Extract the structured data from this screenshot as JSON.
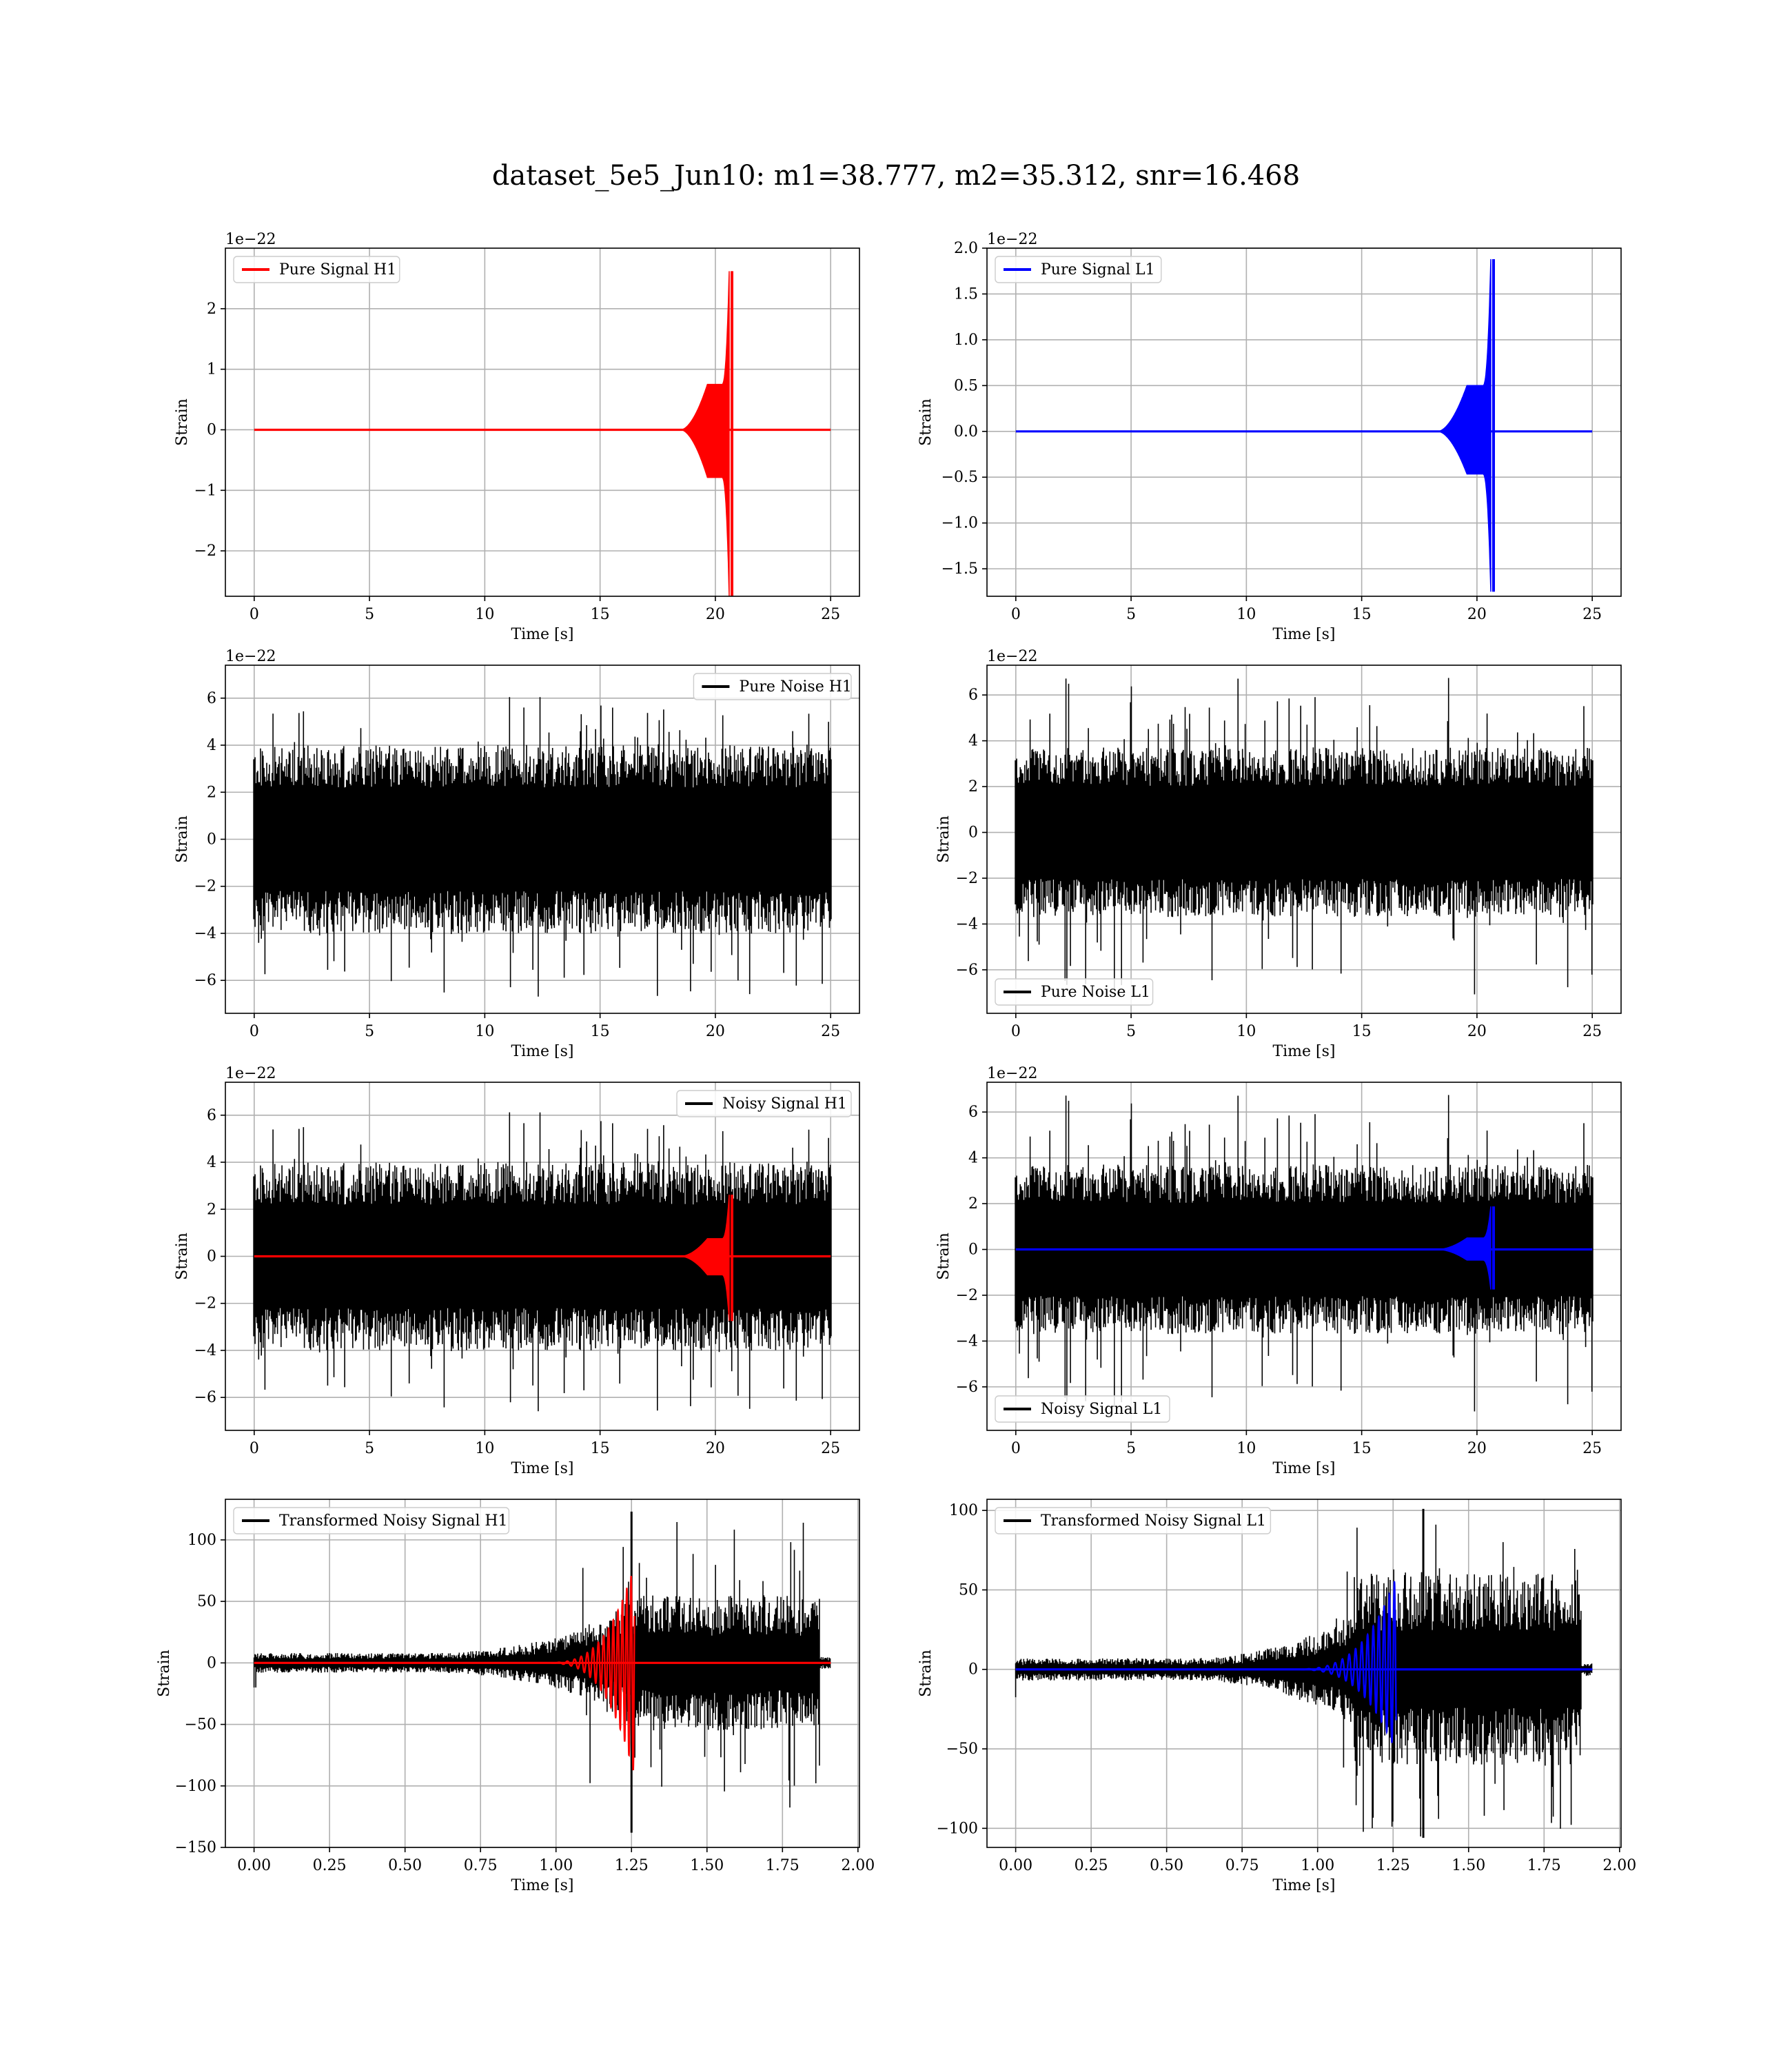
{
  "figure": {
    "title": "dataset_5e5_Jun10: m1=38.777, m2=35.312, snr=16.468"
  },
  "chart_data": [
    {
      "type": "line",
      "legend": "Pure Signal H1",
      "legend_loc": "upper left",
      "xlabel": "Time [s]",
      "ylabel": "Strain",
      "offset_text": "1e−22",
      "xlim": [
        -1.25,
        26.25
      ],
      "ylim": [
        -2.75,
        3.0
      ],
      "xticks": [
        0,
        5,
        10,
        15,
        20,
        25
      ],
      "xtick_labels": [
        "0",
        "5",
        "10",
        "15",
        "20",
        "25"
      ],
      "yticks": [
        -2,
        -1,
        0,
        1,
        2
      ],
      "ytick_labels": [
        "−2",
        "−1",
        "0",
        "1",
        "2"
      ],
      "grid": true,
      "series": [
        {
          "kind": "chirp",
          "color": "#ff0000",
          "x_start": 0,
          "x_end": 25,
          "start": 18.5,
          "peak_x": 20.6,
          "end": 20.7,
          "shoulder": 0.75,
          "amp_pos": 2.62,
          "amp_neg": 2.75,
          "ring_x": 20.72
        }
      ]
    },
    {
      "type": "line",
      "legend": "Pure Signal L1",
      "legend_loc": "upper left",
      "xlabel": "Time [s]",
      "ylabel": "Strain",
      "offset_text": "1e−22",
      "xlim": [
        -1.25,
        26.25
      ],
      "ylim": [
        -1.8,
        2.0
      ],
      "xticks": [
        0,
        5,
        10,
        15,
        20,
        25
      ],
      "xtick_labels": [
        "0",
        "5",
        "10",
        "15",
        "20",
        "25"
      ],
      "yticks": [
        -1.5,
        -1.0,
        -0.5,
        0.0,
        0.5,
        1.0,
        1.5,
        2.0
      ],
      "ytick_labels": [
        "−1.5",
        "−1.0",
        "−0.5",
        "0.0",
        "0.5",
        "1.0",
        "1.5",
        "2.0"
      ],
      "grid": true,
      "series": [
        {
          "kind": "chirp",
          "color": "#0000ff",
          "x_start": 0,
          "x_end": 25,
          "start": 18.3,
          "peak_x": 20.6,
          "end": 20.7,
          "shoulder": 0.5,
          "amp_pos": 1.88,
          "amp_neg": 1.75,
          "ring_x": 20.72
        }
      ]
    },
    {
      "type": "line",
      "legend": "Pure Noise H1",
      "legend_loc": "upper right",
      "xlabel": "Time [s]",
      "ylabel": "Strain",
      "offset_text": "1e−22",
      "xlim": [
        -1.25,
        26.25
      ],
      "ylim": [
        -7.4,
        7.4
      ],
      "xticks": [
        0,
        5,
        10,
        15,
        20,
        25
      ],
      "xtick_labels": [
        "0",
        "5",
        "10",
        "15",
        "20",
        "25"
      ],
      "yticks": [
        -6,
        -4,
        -2,
        0,
        2,
        4,
        6
      ],
      "ytick_labels": [
        "−6",
        "−4",
        "−2",
        "0",
        "2",
        "4",
        "6"
      ],
      "grid": true,
      "series": [
        {
          "kind": "noise",
          "color": "#000000",
          "x_start": 0,
          "x_end": 25,
          "core": 4.0,
          "max": 6.7,
          "min": -6.7,
          "seed": 11
        }
      ]
    },
    {
      "type": "line",
      "legend": "Pure Noise L1",
      "legend_loc": "lower left",
      "xlabel": "Time [s]",
      "ylabel": "Strain",
      "offset_text": "1e−22",
      "xlim": [
        -1.25,
        26.25
      ],
      "ylim": [
        -7.9,
        7.3
      ],
      "xticks": [
        0,
        5,
        10,
        15,
        20,
        25
      ],
      "xtick_labels": [
        "0",
        "5",
        "10",
        "15",
        "20",
        "25"
      ],
      "yticks": [
        -6,
        -4,
        -2,
        0,
        2,
        4,
        6
      ],
      "ytick_labels": [
        "−6",
        "−4",
        "−2",
        "0",
        "2",
        "4",
        "6"
      ],
      "grid": true,
      "series": [
        {
          "kind": "noise",
          "color": "#000000",
          "x_start": 0,
          "x_end": 25,
          "core": 3.7,
          "max": 6.8,
          "min": -7.1,
          "seed": 23
        }
      ]
    },
    {
      "type": "line",
      "legend": "Noisy Signal H1",
      "legend_loc": "upper right",
      "xlabel": "Time [s]",
      "ylabel": "Strain",
      "offset_text": "1e−22",
      "xlim": [
        -1.25,
        26.25
      ],
      "ylim": [
        -7.4,
        7.4
      ],
      "xticks": [
        0,
        5,
        10,
        15,
        20,
        25
      ],
      "xtick_labels": [
        "0",
        "5",
        "10",
        "15",
        "20",
        "25"
      ],
      "yticks": [
        -6,
        -4,
        -2,
        0,
        2,
        4,
        6
      ],
      "ytick_labels": [
        "−6",
        "−4",
        "−2",
        "0",
        "2",
        "4",
        "6"
      ],
      "grid": true,
      "series": [
        {
          "kind": "noise",
          "color": "#000000",
          "x_start": 0,
          "x_end": 25,
          "core": 4.0,
          "max": 6.8,
          "min": -6.6,
          "seed": 11
        },
        {
          "kind": "chirp",
          "color": "#ff0000",
          "x_start": 0,
          "x_end": 25,
          "start": 18.5,
          "peak_x": 20.6,
          "end": 20.7,
          "shoulder": 0.75,
          "amp_pos": 2.62,
          "amp_neg": 2.75,
          "ring_x": 20.72
        }
      ]
    },
    {
      "type": "line",
      "legend": "Noisy Signal L1",
      "legend_loc": "lower left",
      "xlabel": "Time [s]",
      "ylabel": "Strain",
      "offset_text": "1e−22",
      "xlim": [
        -1.25,
        26.25
      ],
      "ylim": [
        -7.9,
        7.3
      ],
      "xticks": [
        0,
        5,
        10,
        15,
        20,
        25
      ],
      "xtick_labels": [
        "0",
        "5",
        "10",
        "15",
        "20",
        "25"
      ],
      "yticks": [
        -6,
        -4,
        -2,
        0,
        2,
        4,
        6
      ],
      "ytick_labels": [
        "−6",
        "−4",
        "−2",
        "0",
        "2",
        "4",
        "6"
      ],
      "grid": true,
      "series": [
        {
          "kind": "noise",
          "color": "#000000",
          "x_start": 0,
          "x_end": 25,
          "core": 3.7,
          "max": 6.8,
          "min": -7.1,
          "seed": 23
        },
        {
          "kind": "chirp",
          "color": "#0000ff",
          "x_start": 0,
          "x_end": 25,
          "start": 18.3,
          "peak_x": 20.6,
          "end": 20.7,
          "shoulder": 0.5,
          "amp_pos": 1.88,
          "amp_neg": 1.75,
          "ring_x": 20.72
        }
      ]
    },
    {
      "type": "line",
      "legend": "Transformed Noisy Signal H1",
      "legend_loc": "upper left",
      "xlabel": "Time [s]",
      "ylabel": "Strain",
      "offset_text": "",
      "xlim": [
        -0.095,
        2.005
      ],
      "ylim": [
        -150,
        133
      ],
      "xticks": [
        0.0,
        0.25,
        0.5,
        0.75,
        1.0,
        1.25,
        1.5,
        1.75,
        2.0
      ],
      "xtick_labels": [
        "0.00",
        "0.25",
        "0.50",
        "0.75",
        "1.00",
        "1.25",
        "1.50",
        "1.75",
        "2.00"
      ],
      "yticks": [
        -150,
        -100,
        -50,
        0,
        50,
        100
      ],
      "ytick_labels": [
        "−150",
        "−100",
        "−50",
        "0",
        "50",
        "100"
      ],
      "grid": true,
      "series": [
        {
          "kind": "transformed",
          "color": "#000000",
          "x_start": 0,
          "x_end": 1.91,
          "drop_x": 1.875,
          "pre": 8,
          "ramp_end": 1.22,
          "ramp_top": 40,
          "post": 55,
          "spike_x": 1.25,
          "max": 123,
          "min": -138,
          "seed": 31
        },
        {
          "kind": "chirp",
          "color": "#ff0000",
          "x_start": 0,
          "x_end": 1.91,
          "start": 0.95,
          "peak_x": 1.245,
          "end": 1.26,
          "shoulder": 22,
          "amp_pos": 68,
          "amp_neg": 78,
          "ring_x": 1.265,
          "osc": 1
        }
      ]
    },
    {
      "type": "line",
      "legend": "Transformed Noisy Signal L1",
      "legend_loc": "upper left",
      "xlabel": "Time [s]",
      "ylabel": "Strain",
      "offset_text": "",
      "xlim": [
        -0.095,
        2.005
      ],
      "ylim": [
        -112,
        107
      ],
      "xticks": [
        0.0,
        0.25,
        0.5,
        0.75,
        1.0,
        1.25,
        1.5,
        1.75,
        2.0
      ],
      "xtick_labels": [
        "0.00",
        "0.25",
        "0.50",
        "0.75",
        "1.00",
        "1.25",
        "1.50",
        "1.75",
        "2.00"
      ],
      "yticks": [
        -100,
        -50,
        0,
        50,
        100
      ],
      "ytick_labels": [
        "−100",
        "−50",
        "0",
        "50",
        "100"
      ],
      "grid": true,
      "series": [
        {
          "kind": "transformed",
          "color": "#000000",
          "x_start": 0,
          "x_end": 1.91,
          "drop_x": 1.875,
          "pre": 7,
          "ramp_end": 1.12,
          "ramp_top": 35,
          "post": 60,
          "spike_x": 1.35,
          "max": 101,
          "min": -106,
          "seed": 47
        },
        {
          "kind": "chirp",
          "color": "#0000ff",
          "x_start": 0,
          "x_end": 1.91,
          "start": 0.9,
          "peak_x": 1.25,
          "end": 1.26,
          "shoulder": 18,
          "amp_pos": 53,
          "amp_neg": 48,
          "ring_x": 1.265,
          "osc": 1
        }
      ]
    }
  ]
}
